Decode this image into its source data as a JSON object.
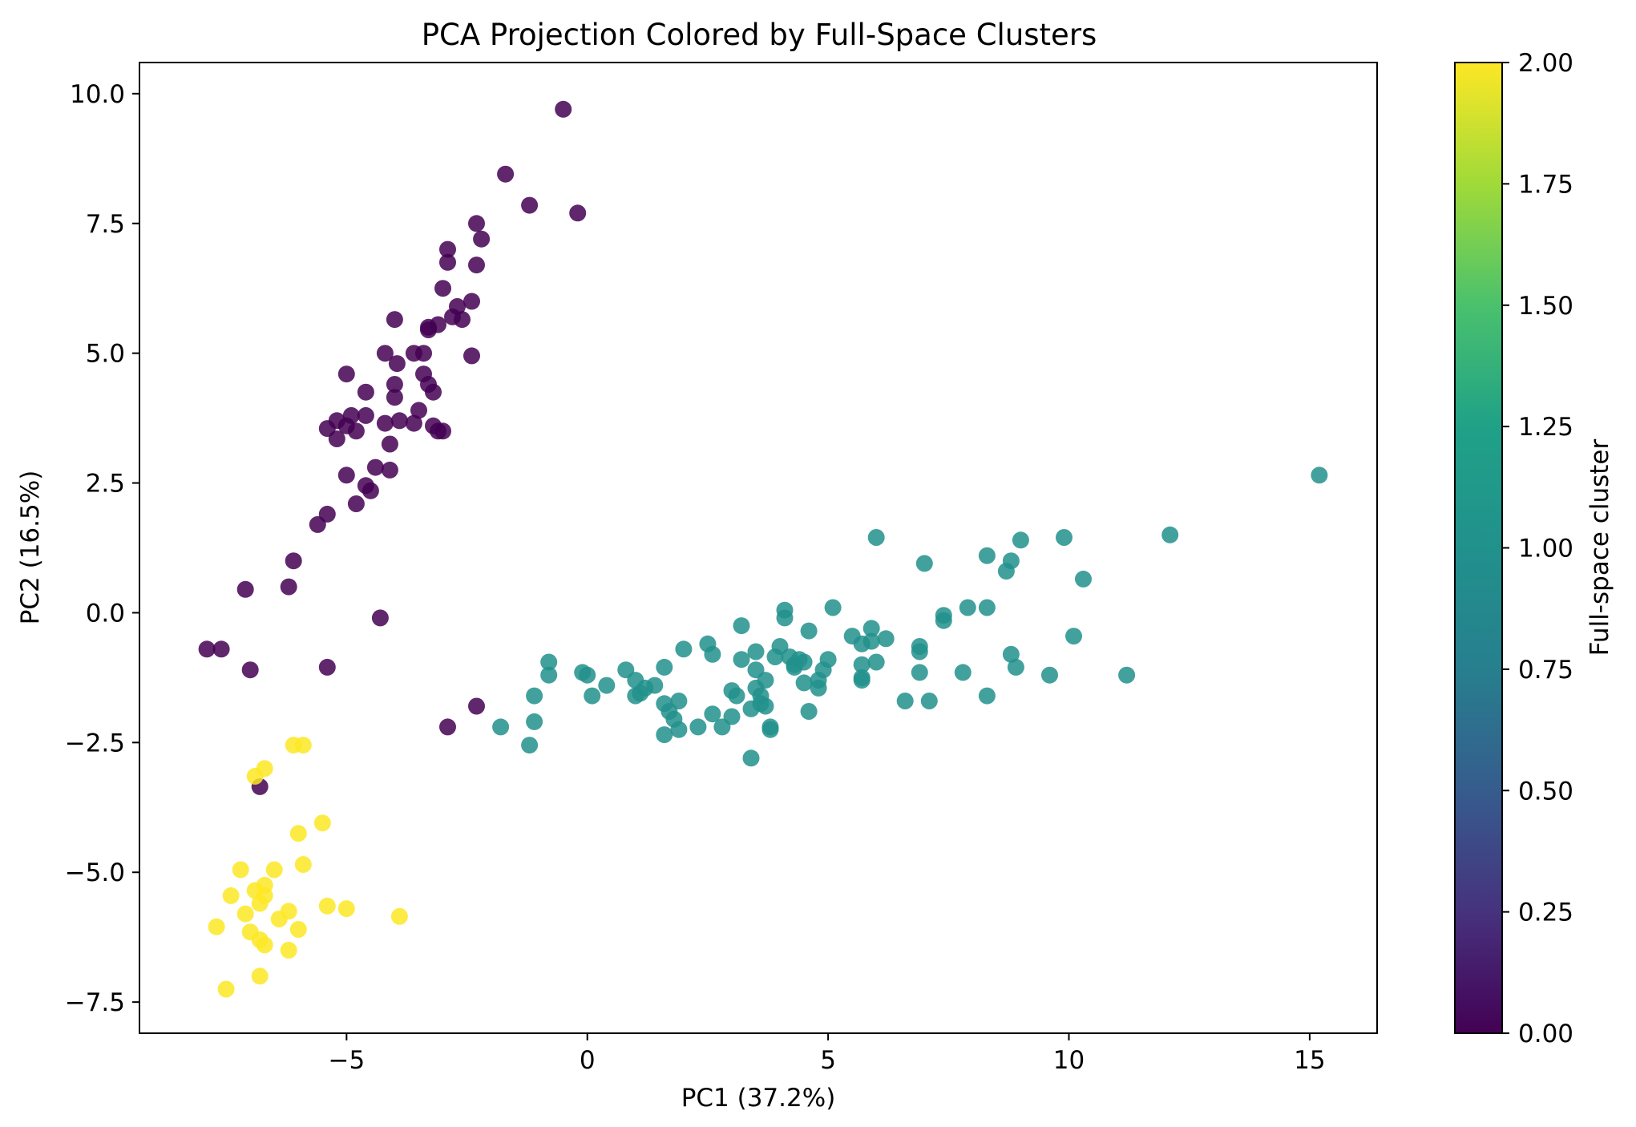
{
  "chart_data": {
    "type": "scatter",
    "title": "PCA Projection Colored by Full-Space Clusters",
    "xlabel": "PC1 (37.2%)",
    "ylabel": "PC2 (16.5%)",
    "xlim": [
      -9.3,
      16.4
    ],
    "ylim": [
      -8.1,
      10.6
    ],
    "xticks": [
      -5,
      0,
      5,
      10,
      15
    ],
    "xtick_labels": [
      "−5",
      "0",
      "5",
      "10",
      "15"
    ],
    "yticks": [
      -7.5,
      -5.0,
      -2.5,
      0.0,
      2.5,
      5.0,
      7.5,
      10.0
    ],
    "ytick_labels": [
      "−7.5",
      "−5.0",
      "−2.5",
      "0.0",
      "2.5",
      "5.0",
      "7.5",
      "10.0"
    ],
    "grid": false,
    "colormap": "viridis",
    "colors": {
      "0": "#440154",
      "1": "#21918c",
      "2": "#fde725"
    },
    "colorbar": {
      "label": "Full-space cluster",
      "range": [
        0.0,
        2.0
      ],
      "ticks": [
        0.0,
        0.25,
        0.5,
        0.75,
        1.0,
        1.25,
        1.5,
        1.75,
        2.0
      ],
      "tick_labels": [
        "0.00",
        "0.25",
        "0.50",
        "0.75",
        "1.00",
        "1.25",
        "1.50",
        "1.75",
        "2.00"
      ]
    },
    "points": [
      [
        -0.5,
        9.7,
        0
      ],
      [
        -1.7,
        8.45,
        0
      ],
      [
        -1.2,
        7.85,
        0
      ],
      [
        -0.2,
        7.7,
        0
      ],
      [
        -2.3,
        7.5,
        0
      ],
      [
        -2.2,
        7.2,
        0
      ],
      [
        -2.9,
        7.0,
        0
      ],
      [
        -2.9,
        6.75,
        0
      ],
      [
        -2.3,
        6.7,
        0
      ],
      [
        -3.0,
        6.25,
        0
      ],
      [
        -2.4,
        6.0,
        0
      ],
      [
        -2.7,
        5.9,
        0
      ],
      [
        -2.8,
        5.7,
        0
      ],
      [
        -2.6,
        5.65,
        0
      ],
      [
        -4.0,
        5.65,
        0
      ],
      [
        -3.1,
        5.55,
        0
      ],
      [
        -3.3,
        5.5,
        0
      ],
      [
        -3.3,
        5.45,
        0
      ],
      [
        -3.6,
        5.0,
        0
      ],
      [
        -3.4,
        5.0,
        0
      ],
      [
        -4.2,
        5.0,
        0
      ],
      [
        -2.4,
        4.95,
        0
      ],
      [
        -3.95,
        4.8,
        0
      ],
      [
        -5.0,
        4.6,
        0
      ],
      [
        -3.4,
        4.6,
        0
      ],
      [
        -4.0,
        4.4,
        0
      ],
      [
        -3.3,
        4.4,
        0
      ],
      [
        -3.2,
        4.25,
        0
      ],
      [
        -4.6,
        4.25,
        0
      ],
      [
        -4.0,
        4.15,
        0
      ],
      [
        -3.5,
        3.9,
        0
      ],
      [
        -4.6,
        3.8,
        0
      ],
      [
        -4.9,
        3.8,
        0
      ],
      [
        -5.2,
        3.7,
        0
      ],
      [
        -3.9,
        3.7,
        0
      ],
      [
        -4.2,
        3.65,
        0
      ],
      [
        -3.6,
        3.65,
        0
      ],
      [
        -5.0,
        3.6,
        0
      ],
      [
        -3.2,
        3.6,
        0
      ],
      [
        -5.4,
        3.55,
        0
      ],
      [
        -4.8,
        3.5,
        0
      ],
      [
        -3.0,
        3.5,
        0
      ],
      [
        -3.1,
        3.5,
        0
      ],
      [
        -5.2,
        3.35,
        0
      ],
      [
        -4.1,
        3.25,
        0
      ],
      [
        -4.4,
        2.8,
        0
      ],
      [
        -4.1,
        2.75,
        0
      ],
      [
        -5.0,
        2.65,
        0
      ],
      [
        -4.6,
        2.45,
        0
      ],
      [
        -4.5,
        2.35,
        0
      ],
      [
        -4.8,
        2.1,
        0
      ],
      [
        -5.4,
        1.9,
        0
      ],
      [
        -5.6,
        1.7,
        0
      ],
      [
        -6.1,
        1.0,
        0
      ],
      [
        -7.1,
        0.45,
        0
      ],
      [
        -6.2,
        0.5,
        0
      ],
      [
        -4.3,
        -0.1,
        0
      ],
      [
        -7.9,
        -0.7,
        0
      ],
      [
        -7.6,
        -0.7,
        0
      ],
      [
        -7.0,
        -1.1,
        0
      ],
      [
        -5.4,
        -1.05,
        0
      ],
      [
        -2.3,
        -1.8,
        0
      ],
      [
        -2.9,
        -2.2,
        0
      ],
      [
        -6.8,
        -3.35,
        0
      ],
      [
        15.2,
        2.65,
        1
      ],
      [
        12.1,
        1.5,
        1
      ],
      [
        9.9,
        1.45,
        1
      ],
      [
        6.0,
        1.45,
        1
      ],
      [
        9.0,
        1.4,
        1
      ],
      [
        8.3,
        1.1,
        1
      ],
      [
        8.8,
        1.0,
        1
      ],
      [
        7.0,
        0.95,
        1
      ],
      [
        8.7,
        0.8,
        1
      ],
      [
        10.3,
        0.65,
        1
      ],
      [
        5.1,
        0.1,
        1
      ],
      [
        4.1,
        0.05,
        1
      ],
      [
        7.9,
        0.1,
        1
      ],
      [
        8.3,
        0.1,
        1
      ],
      [
        7.4,
        -0.05,
        1
      ],
      [
        7.4,
        -0.15,
        1
      ],
      [
        4.1,
        -0.1,
        1
      ],
      [
        3.2,
        -0.25,
        1
      ],
      [
        5.9,
        -0.3,
        1
      ],
      [
        4.6,
        -0.35,
        1
      ],
      [
        5.5,
        -0.45,
        1
      ],
      [
        6.2,
        -0.5,
        1
      ],
      [
        10.1,
        -0.45,
        1
      ],
      [
        5.9,
        -0.55,
        1
      ],
      [
        5.7,
        -0.6,
        1
      ],
      [
        6.9,
        -0.65,
        1
      ],
      [
        2.5,
        -0.6,
        1
      ],
      [
        4.0,
        -0.65,
        1
      ],
      [
        2.0,
        -0.7,
        1
      ],
      [
        3.5,
        -0.75,
        1
      ],
      [
        6.9,
        -0.75,
        1
      ],
      [
        2.6,
        -0.8,
        1
      ],
      [
        8.8,
        -0.8,
        1
      ],
      [
        4.2,
        -0.85,
        1
      ],
      [
        3.9,
        -0.85,
        1
      ],
      [
        4.4,
        -0.9,
        1
      ],
      [
        5.0,
        -0.9,
        1
      ],
      [
        3.2,
        -0.9,
        1
      ],
      [
        4.5,
        -0.95,
        1
      ],
      [
        -0.8,
        -0.95,
        1
      ],
      [
        6.0,
        -0.95,
        1
      ],
      [
        5.7,
        -1.0,
        1
      ],
      [
        4.3,
        -1.0,
        1
      ],
      [
        8.9,
        -1.05,
        1
      ],
      [
        4.3,
        -1.05,
        1
      ],
      [
        3.5,
        -1.1,
        1
      ],
      [
        4.9,
        -1.1,
        1
      ],
      [
        1.6,
        -1.05,
        1
      ],
      [
        0.8,
        -1.1,
        1
      ],
      [
        6.9,
        -1.15,
        1
      ],
      [
        7.8,
        -1.15,
        1
      ],
      [
        -0.1,
        -1.15,
        1
      ],
      [
        0.0,
        -1.2,
        1
      ],
      [
        -0.8,
        -1.2,
        1
      ],
      [
        9.6,
        -1.2,
        1
      ],
      [
        11.2,
        -1.2,
        1
      ],
      [
        5.7,
        -1.3,
        1
      ],
      [
        5.7,
        -1.25,
        1
      ],
      [
        3.7,
        -1.3,
        1
      ],
      [
        1.0,
        -1.3,
        1
      ],
      [
        4.8,
        -1.3,
        1
      ],
      [
        4.5,
        -1.35,
        1
      ],
      [
        0.4,
        -1.4,
        1
      ],
      [
        1.4,
        -1.4,
        1
      ],
      [
        4.8,
        -1.45,
        1
      ],
      [
        3.5,
        -1.45,
        1
      ],
      [
        1.2,
        -1.45,
        1
      ],
      [
        1.1,
        -1.55,
        1
      ],
      [
        3.0,
        -1.5,
        1
      ],
      [
        1.0,
        -1.6,
        1
      ],
      [
        0.1,
        -1.6,
        1
      ],
      [
        -1.1,
        -1.6,
        1
      ],
      [
        8.3,
        -1.6,
        1
      ],
      [
        3.6,
        -1.6,
        1
      ],
      [
        3.1,
        -1.6,
        1
      ],
      [
        1.9,
        -1.7,
        1
      ],
      [
        6.6,
        -1.7,
        1
      ],
      [
        7.1,
        -1.7,
        1
      ],
      [
        3.6,
        -1.75,
        1
      ],
      [
        1.6,
        -1.75,
        1
      ],
      [
        3.7,
        -1.8,
        1
      ],
      [
        3.4,
        -1.85,
        1
      ],
      [
        4.6,
        -1.9,
        1
      ],
      [
        1.7,
        -1.9,
        1
      ],
      [
        2.6,
        -1.95,
        1
      ],
      [
        3.0,
        -2.0,
        1
      ],
      [
        1.8,
        -2.05,
        1
      ],
      [
        -1.1,
        -2.1,
        1
      ],
      [
        2.3,
        -2.2,
        1
      ],
      [
        2.8,
        -2.2,
        1
      ],
      [
        3.8,
        -2.2,
        1
      ],
      [
        -1.8,
        -2.2,
        1
      ],
      [
        1.9,
        -2.25,
        1
      ],
      [
        3.8,
        -2.25,
        1
      ],
      [
        1.6,
        -2.35,
        1
      ],
      [
        -1.2,
        -2.55,
        1
      ],
      [
        3.4,
        -2.8,
        1
      ],
      [
        -6.1,
        -2.55,
        2
      ],
      [
        -5.9,
        -2.55,
        2
      ],
      [
        -6.7,
        -3.0,
        2
      ],
      [
        -6.9,
        -3.15,
        2
      ],
      [
        -5.5,
        -4.05,
        2
      ],
      [
        -6.0,
        -4.25,
        2
      ],
      [
        -5.9,
        -4.85,
        2
      ],
      [
        -7.2,
        -4.95,
        2
      ],
      [
        -6.5,
        -4.95,
        2
      ],
      [
        -6.7,
        -5.25,
        2
      ],
      [
        -6.9,
        -5.35,
        2
      ],
      [
        -7.4,
        -5.45,
        2
      ],
      [
        -6.7,
        -5.45,
        2
      ],
      [
        -6.8,
        -5.6,
        2
      ],
      [
        -5.4,
        -5.65,
        2
      ],
      [
        -5.0,
        -5.7,
        2
      ],
      [
        -6.2,
        -5.75,
        2
      ],
      [
        -7.1,
        -5.8,
        2
      ],
      [
        -3.9,
        -5.85,
        2
      ],
      [
        -6.4,
        -5.9,
        2
      ],
      [
        -7.7,
        -6.05,
        2
      ],
      [
        -6.0,
        -6.1,
        2
      ],
      [
        -7.0,
        -6.15,
        2
      ],
      [
        -6.8,
        -6.3,
        2
      ],
      [
        -6.7,
        -6.4,
        2
      ],
      [
        -6.2,
        -6.5,
        2
      ],
      [
        -6.8,
        -7.0,
        2
      ],
      [
        -7.5,
        -7.25,
        2
      ]
    ]
  }
}
